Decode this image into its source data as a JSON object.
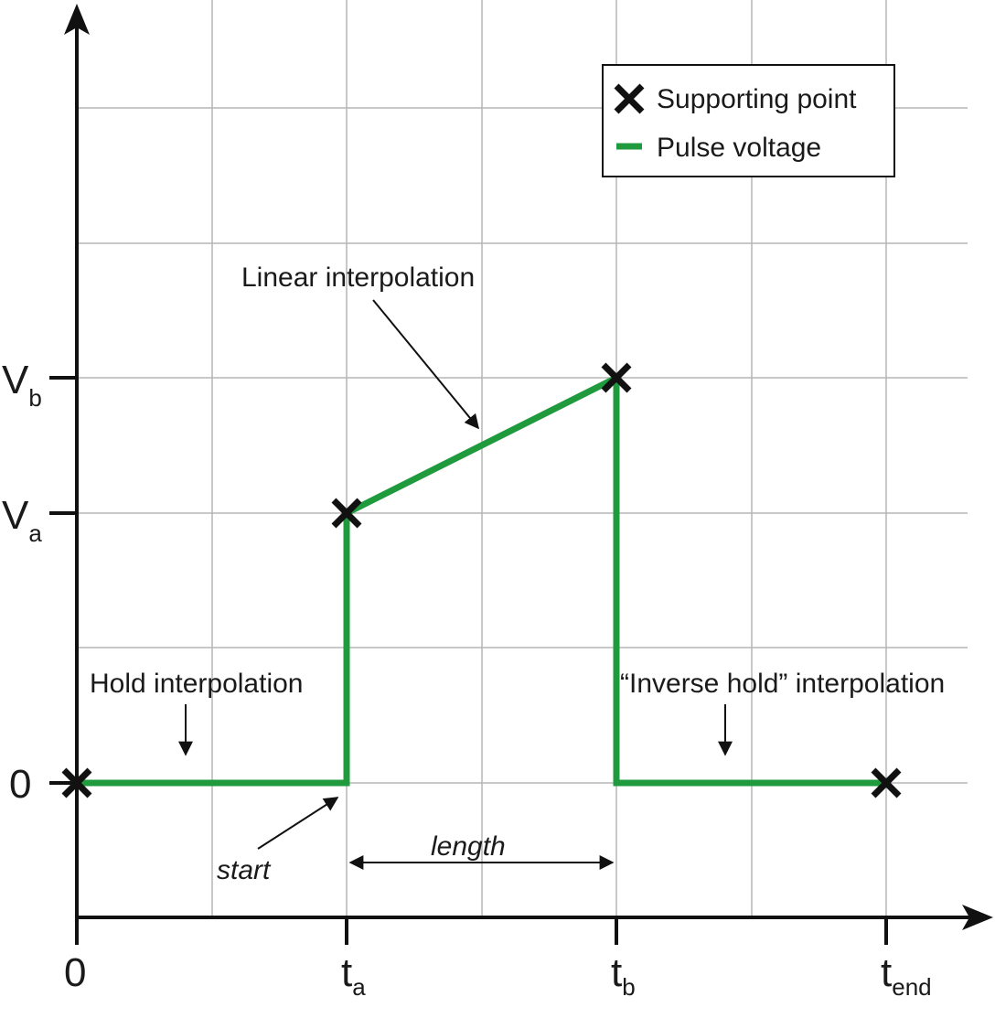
{
  "legend": {
    "supporting_point": "Supporting point",
    "pulse_voltage": "Pulse voltage"
  },
  "axes": {
    "x_ticks": [
      {
        "main": "0",
        "sub": ""
      },
      {
        "main": "t",
        "sub": "a"
      },
      {
        "main": "t",
        "sub": "b"
      },
      {
        "main": "t",
        "sub": "end"
      }
    ],
    "y_ticks": [
      {
        "main": "0",
        "sub": ""
      },
      {
        "main": "V",
        "sub": "a"
      },
      {
        "main": "V",
        "sub": "b"
      }
    ]
  },
  "annotations": {
    "linear": "Linear interpolation",
    "hold": "Hold interpolation",
    "inverse_hold": "“Inverse hold” interpolation",
    "start": "start",
    "length": "length"
  },
  "colors": {
    "pulse": "#1f9a3d",
    "grid": "#b5b5b5",
    "axis": "#111111",
    "marker": "#111111"
  },
  "icons": {
    "marker": "x-cross-icon",
    "pulse_line": "green-line-icon"
  }
}
